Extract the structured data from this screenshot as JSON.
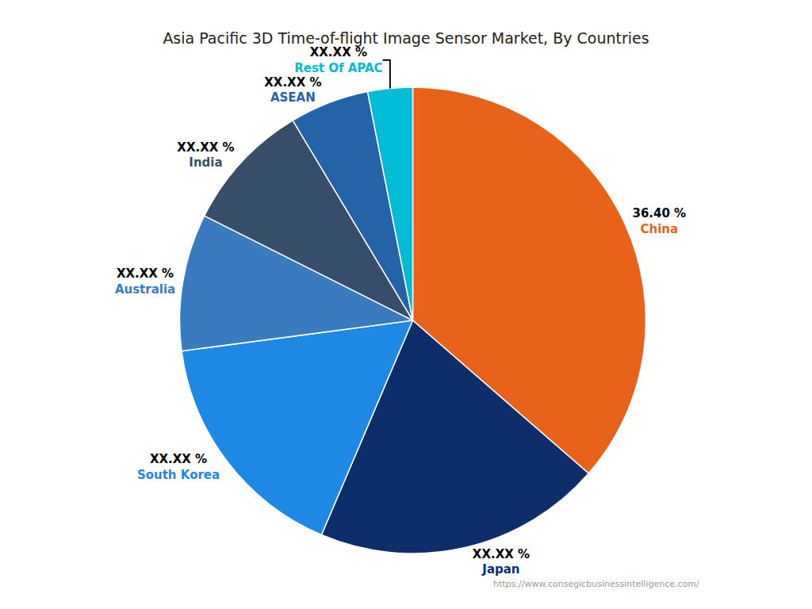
{
  "chart_data": {
    "type": "pie",
    "title": "Asia Pacific 3D Time-of-flight Image Sensor Market, By Countries",
    "categories": [
      "China",
      "Japan",
      "South Korea",
      "Australia",
      "India",
      "ASEAN",
      "Rest Of APAC"
    ],
    "values": [
      36.4,
      20.0,
      16.5,
      9.5,
      9.0,
      5.5,
      3.1
    ],
    "value_labels": [
      "36.40 %",
      "XX.XX %",
      "XX.XX %",
      "XX.XX %",
      "XX.XX %",
      "XX.XX %",
      "XX.XX %"
    ],
    "colors": [
      "#E8621A",
      "#0D2D6B",
      "#1E88E5",
      "#3A7BBF",
      "#374E6B",
      "#2563A8",
      "#00BCD4"
    ],
    "annotations": [
      "https://www.consegicbusinessintelligence.com/"
    ],
    "data_labels": true
  }
}
